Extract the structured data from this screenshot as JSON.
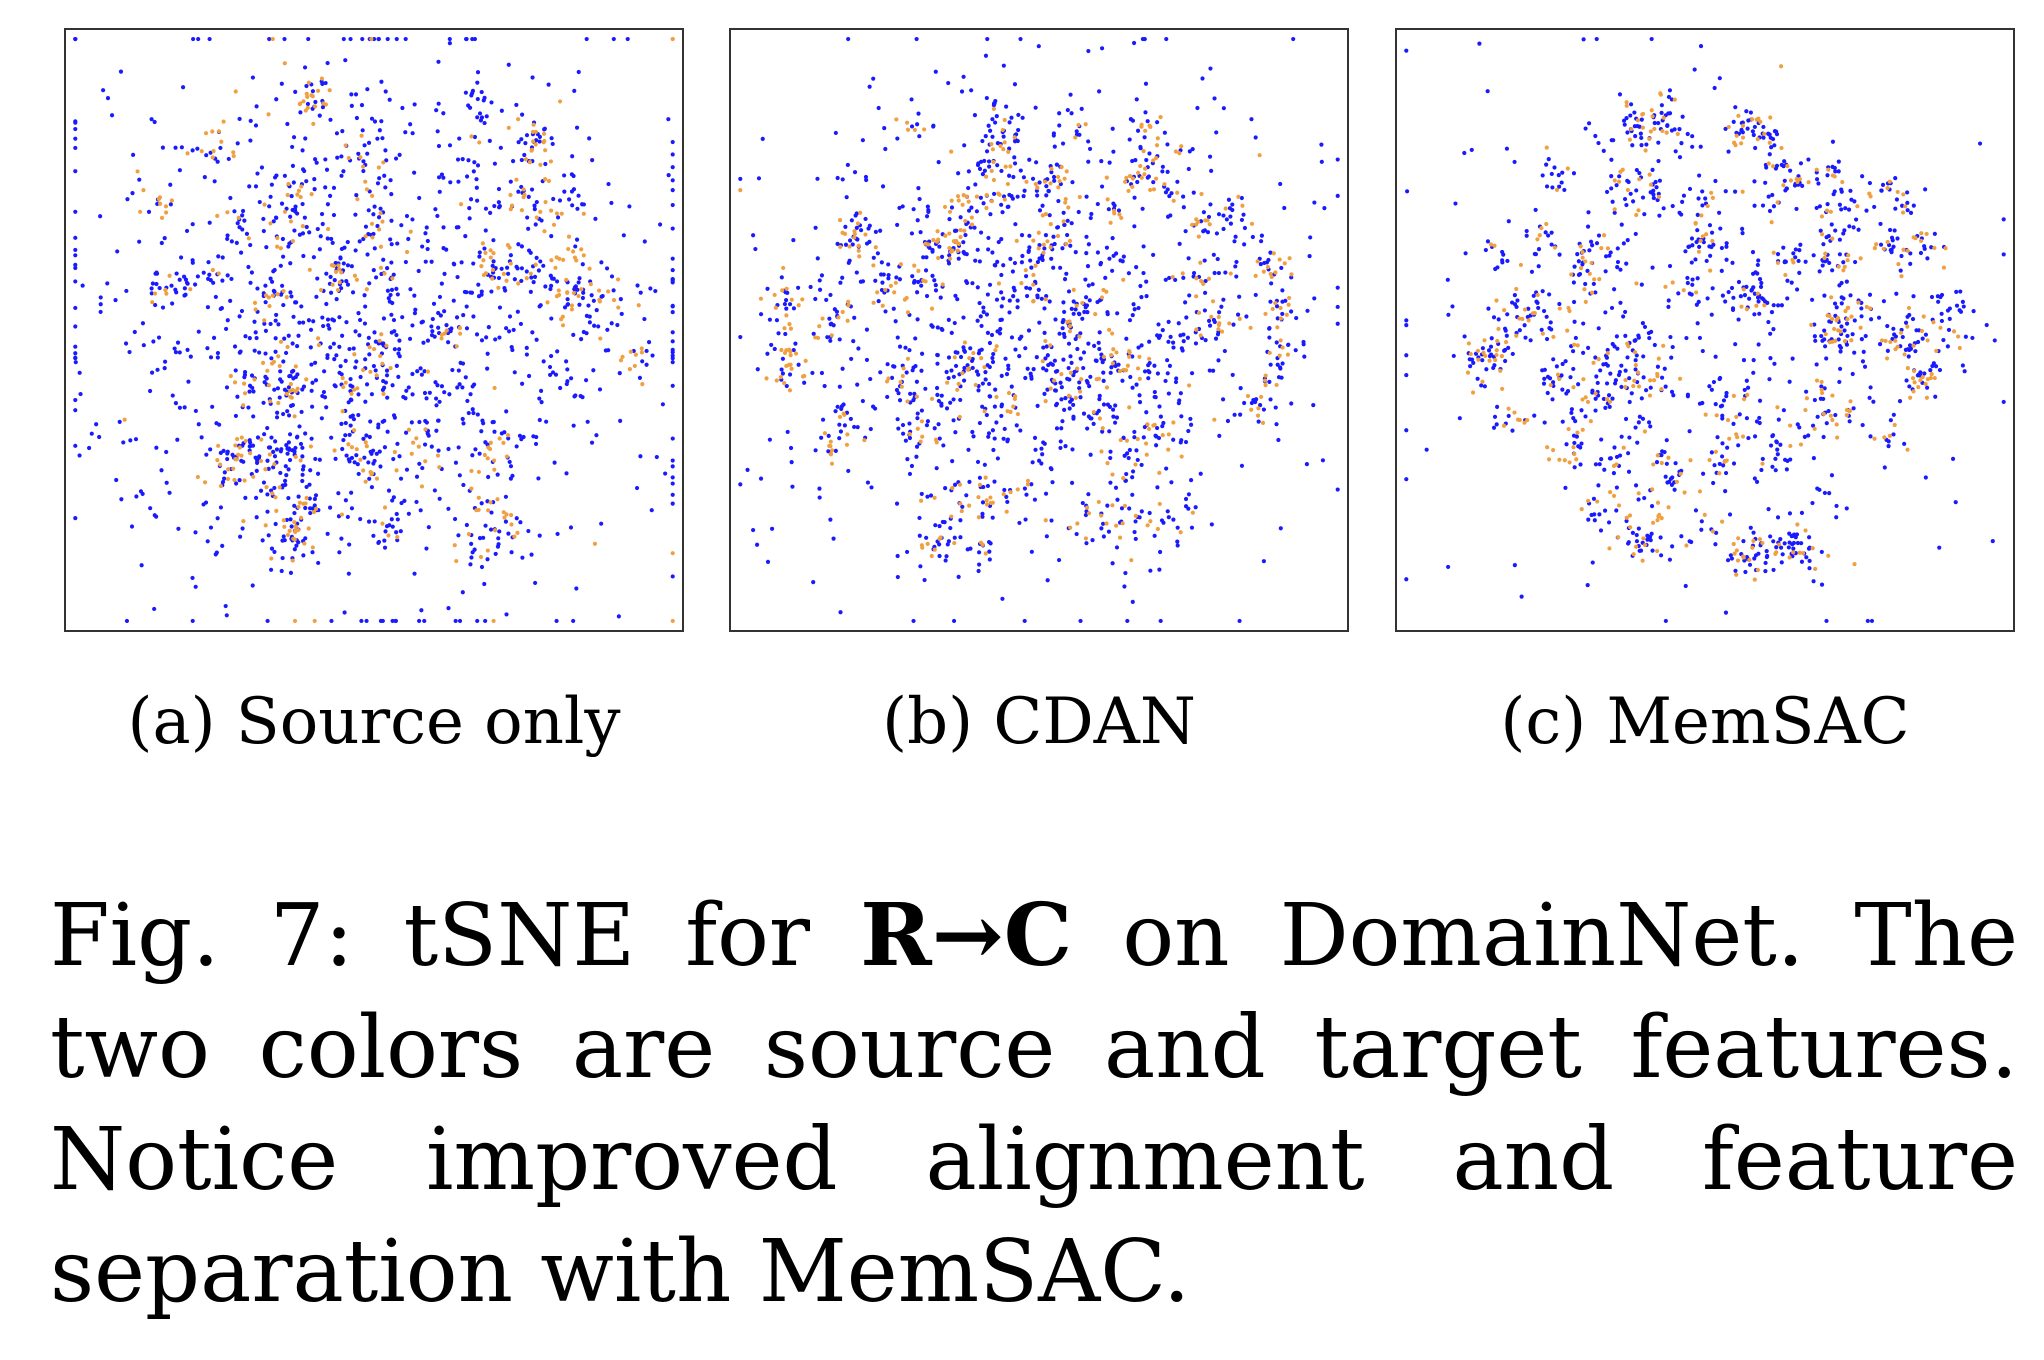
{
  "figure": {
    "panels": [
      {
        "label": "(a) Source only"
      },
      {
        "label": "(b) CDAN"
      },
      {
        "label": "(c) MemSAC"
      }
    ],
    "caption": {
      "prefix": "Fig. 7: tSNE for ",
      "task": "R→C",
      "rest": " on DomainNet. The two colors are source and target features. Notice improved alignment and feature separation with MemSAC."
    }
  },
  "chart_data": [
    {
      "type": "scatter",
      "title": "",
      "xlabel": "",
      "ylabel": "",
      "xlim": [
        -1,
        1
      ],
      "ylim": [
        -1,
        1
      ],
      "grid": false,
      "series": [
        {
          "color": "#1a1aff",
          "n": 1500,
          "spread": 0.48,
          "clusters": 70,
          "clusterFrac": 0.35
        },
        {
          "color": "#f0a040",
          "n": 420,
          "spread": 0.55,
          "clusters": 55,
          "clusterFrac": 0.9
        }
      ]
    },
    {
      "type": "scatter",
      "title": "",
      "xlabel": "",
      "ylabel": "",
      "xlim": [
        -1,
        1
      ],
      "ylim": [
        -1,
        1
      ],
      "grid": false,
      "series": [
        {
          "color": "#1a1aff",
          "n": 1350,
          "spread": 0.42,
          "clusters": 80,
          "clusterFrac": 0.4
        },
        {
          "color": "#f0a040",
          "n": 480,
          "spread": 0.5,
          "clusters": 75,
          "clusterFrac": 0.95
        }
      ]
    },
    {
      "type": "scatter",
      "title": "",
      "xlabel": "",
      "ylabel": "",
      "xlim": [
        -1,
        1
      ],
      "ylim": [
        -1,
        1
      ],
      "grid": false,
      "series": [
        {
          "color": "#1a1aff",
          "n": 1150,
          "spread": 0.44,
          "clusters": 95,
          "clusterFrac": 0.75
        },
        {
          "color": "#f0a040",
          "n": 430,
          "spread": 0.48,
          "clusters": 90,
          "clusterFrac": 0.97
        }
      ]
    }
  ]
}
